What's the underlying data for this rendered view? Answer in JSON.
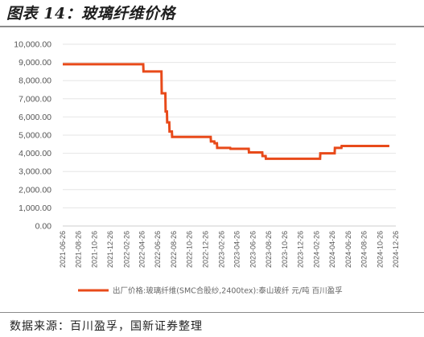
{
  "figure_title": "图表 14：玻璃纤维价格",
  "source": "数据来源：百川盈孚，国新证券整理",
  "colors": {
    "series": "#e84a1a",
    "grid": "#e6e6e6",
    "axis": "#cccccc"
  },
  "chart_data": {
    "type": "line",
    "title": "",
    "xlabel": "",
    "ylabel": "",
    "ylim": [
      0,
      10000
    ],
    "yticks": [
      "0.00",
      "1,000.00",
      "2,000.00",
      "3,000.00",
      "4,000.00",
      "5,000.00",
      "6,000.00",
      "7,000.00",
      "8,000.00",
      "9,000.00",
      "10,000.00"
    ],
    "xlim": [
      "2021-06-26",
      "2024-12-26"
    ],
    "xticks": [
      "2021-06-26",
      "2021-08-26",
      "2021-10-26",
      "2021-12-26",
      "2022-02-26",
      "2022-04-26",
      "2022-06-26",
      "2022-08-26",
      "2022-10-26",
      "2022-12-26",
      "2023-02-26",
      "2023-04-26",
      "2023-06-26",
      "2023-08-26",
      "2023-10-26",
      "2023-12-26",
      "2024-02-26",
      "2024-04-26",
      "2024-06-26",
      "2024-08-26",
      "2024-10-26",
      "2024-12-26"
    ],
    "grid": "horizontal",
    "legend": "bottom",
    "series": [
      {
        "name": "出厂价格:玻璃纤维(SMC合股纱,2400tex):泰山玻纤 元/吨 百川盈孚",
        "color": "#e84a1a",
        "x": [
          "2021-06-26",
          "2022-05-01",
          "2022-05-02",
          "2022-07-10",
          "2022-07-11",
          "2022-07-25",
          "2022-07-26",
          "2022-07-31",
          "2022-08-01",
          "2022-08-09",
          "2022-08-10",
          "2022-08-19",
          "2022-08-20",
          "2023-01-15",
          "2023-01-16",
          "2023-01-29",
          "2023-01-30",
          "2023-02-08",
          "2023-02-09",
          "2023-03-31",
          "2023-04-01",
          "2023-06-10",
          "2023-06-11",
          "2023-08-01",
          "2023-08-02",
          "2023-08-14",
          "2023-08-15",
          "2024-03-10",
          "2024-03-11",
          "2024-05-05",
          "2024-05-06",
          "2024-05-31",
          "2024-06-01",
          "2024-12-01"
        ],
        "y": [
          8900,
          8900,
          8500,
          8500,
          7300,
          7300,
          6300,
          6300,
          5700,
          5700,
          5200,
          5200,
          4900,
          4900,
          4650,
          4650,
          4550,
          4550,
          4300,
          4300,
          4250,
          4250,
          4050,
          4050,
          3850,
          3850,
          3700,
          3700,
          4000,
          4000,
          4300,
          4300,
          4400,
          4400
        ]
      }
    ]
  }
}
